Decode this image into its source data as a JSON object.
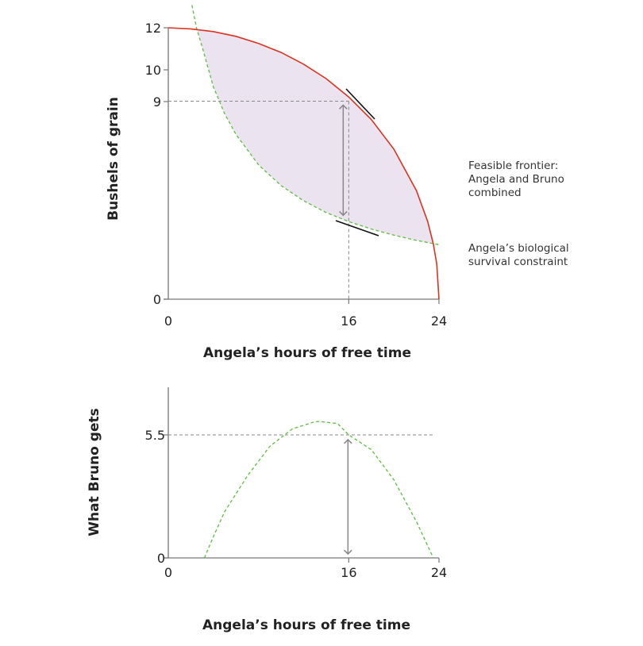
{
  "colors": {
    "frontier": "#e0301e",
    "constraint": "#5cbf3c",
    "feasible_fill": "#ebe4f0",
    "guide": "#888888",
    "tangent": "#111111"
  },
  "chart_data": [
    {
      "type": "line",
      "xlabel": "Angela’s hours of free time",
      "ylabel": "Bushels of grain",
      "xlim": [
        0,
        24
      ],
      "ylim": [
        0,
        12
      ],
      "xticks": [
        "0",
        "16",
        "24"
      ],
      "xtick_values": [
        0,
        16,
        24
      ],
      "yticks": [
        "0",
        "9",
        "10",
        "12"
      ],
      "ytick_values": [
        0,
        9,
        10,
        12
      ],
      "grid": false,
      "series": [
        {
          "name": "Feasible frontier: Angela and Bruno combined",
          "style": "solid",
          "x": [
            0,
            2,
            4,
            6,
            8,
            10,
            12,
            14,
            16,
            18,
            20,
            22,
            23,
            23.5,
            23.8,
            24
          ],
          "y": [
            12,
            11.95,
            11.83,
            11.62,
            11.31,
            10.91,
            10.39,
            9.75,
            8.94,
            7.94,
            6.63,
            4.8,
            3.43,
            2.44,
            1.55,
            0
          ]
        },
        {
          "name": "Angela’s biological survival constraint",
          "style": "dashed",
          "x": [
            2.1,
            2.5,
            3,
            4,
            5,
            6,
            8,
            10,
            12,
            14,
            16,
            18,
            20,
            22,
            24
          ],
          "y": [
            13.0,
            12.0,
            11.17,
            9.39,
            8.2,
            7.28,
            5.94,
            5.02,
            4.35,
            3.83,
            3.43,
            3.1,
            2.83,
            2.6,
            2.41
          ]
        }
      ],
      "annotations": [
        {
          "text": "Feasible frontier: Angela and Bruno combined",
          "lines": [
            "Feasible frontier:",
            "Angela and Bruno",
            "combined"
          ]
        },
        {
          "text": "Angela’s biological survival constraint",
          "lines": [
            "Angela’s biological",
            "survival constraint"
          ]
        }
      ],
      "reference": {
        "x": 16,
        "y_frontier": 9,
        "y_constraint": 3.43
      }
    },
    {
      "type": "line",
      "xlabel": "Angela’s hours of free time",
      "ylabel": "What Bruno gets",
      "xlim": [
        0,
        24
      ],
      "ylim": [
        0,
        7.5
      ],
      "xticks": [
        "0",
        "16",
        "24"
      ],
      "xtick_values": [
        0,
        16,
        24
      ],
      "yticks": [
        "0",
        "5.5"
      ],
      "ytick_values": [
        0,
        5.5
      ],
      "grid": false,
      "series": [
        {
          "style": "dashed",
          "x": [
            3.2,
            4,
            5,
            7,
            9,
            11,
            13,
            13.35,
            15,
            16,
            18,
            20,
            22,
            23.5
          ],
          "y": [
            0,
            0.95,
            2.07,
            3.66,
            4.99,
            5.77,
            6.09,
            6.1,
            6.01,
            5.5,
            4.84,
            3.49,
            1.62,
            0
          ]
        }
      ],
      "reference": {
        "x": 16,
        "y": 5.5
      }
    }
  ]
}
